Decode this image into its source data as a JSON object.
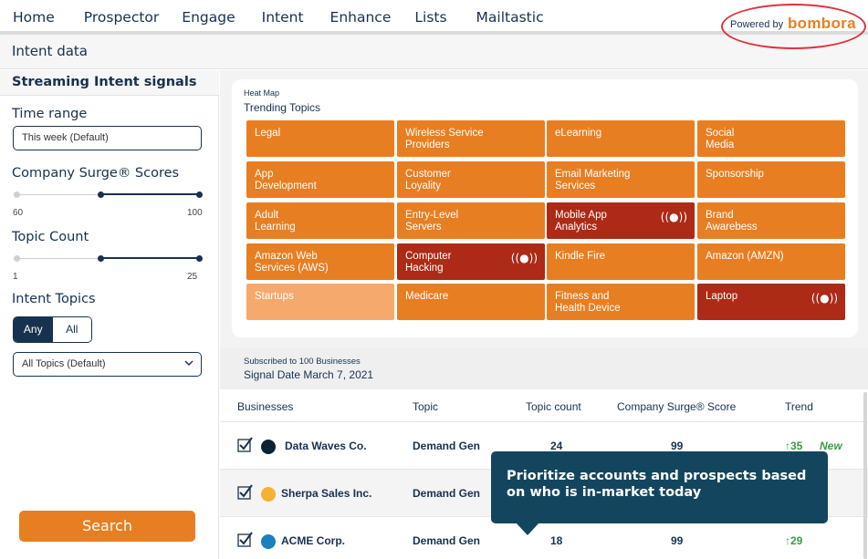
{
  "nav": {
    "items": [
      {
        "label": "Home"
      },
      {
        "label": "Prospector"
      },
      {
        "label": "Engage"
      },
      {
        "label": "Intent"
      },
      {
        "label": "Enhance"
      },
      {
        "label": "Lists"
      },
      {
        "label": "Mailtastic"
      }
    ],
    "active": "Intent",
    "accent": "#e87e22"
  },
  "header": {
    "title": "Intent data",
    "powered_by": "Powered by",
    "brand": "bombora",
    "brand_color": "#e87e22",
    "highlight_color": "#e0313b"
  },
  "sidebar": {
    "heading": "Streaming Intent signals",
    "time_range": {
      "label": "Time range",
      "value": "This week (Default)"
    },
    "surge": {
      "label": "Company Surge® Scores",
      "min_label": "60",
      "max_label": "100",
      "selected_from_fraction": 0.46,
      "selected_to_fraction": 1.0
    },
    "topic_count": {
      "label": "Topic Count",
      "min_label": "1",
      "max_label": "25",
      "selected_from_fraction": 0.46,
      "selected_to_fraction": 1.0
    },
    "intent_topics": {
      "label": "Intent Topics",
      "any": "Any",
      "all": "All",
      "selected": "Any",
      "select_value": "All Topics (Default)"
    },
    "search_button": "Search"
  },
  "heatmap": {
    "subtitle": "Heat Map",
    "title": "Trending Topics",
    "tiles": [
      {
        "label": "Legal",
        "level": "normal",
        "signal": false
      },
      {
        "label": "Wireless Service\nProviders",
        "level": "normal",
        "signal": false
      },
      {
        "label": "eLearning",
        "level": "normal",
        "signal": false
      },
      {
        "label": "Social\nMedia",
        "level": "normal",
        "signal": false
      },
      {
        "label": "App\nDevelopment",
        "level": "normal",
        "signal": false
      },
      {
        "label": "Customer\nLoyality",
        "level": "normal",
        "signal": false
      },
      {
        "label": "Email Marketing\nServices",
        "level": "normal",
        "signal": false
      },
      {
        "label": "Sponsorship",
        "level": "normal",
        "signal": false
      },
      {
        "label": "Adult\nLearning",
        "level": "normal",
        "signal": false
      },
      {
        "label": "Entry-Level\nServers",
        "level": "normal",
        "signal": false
      },
      {
        "label": "Mobile App\nAnalytics",
        "level": "hot",
        "signal": true
      },
      {
        "label": "Brand\nAwarebess",
        "level": "normal",
        "signal": false
      },
      {
        "label": "Amazon Web\nServices (AWS)",
        "level": "normal",
        "signal": false
      },
      {
        "label": "Computer\nHacking",
        "level": "hot",
        "signal": true
      },
      {
        "label": "Kindle Fire",
        "level": "normal",
        "signal": false
      },
      {
        "label": "Amazon (AMZN)",
        "level": "normal",
        "signal": false
      },
      {
        "label": "Startups",
        "level": "light",
        "signal": false
      },
      {
        "label": "Medicare",
        "level": "normal",
        "signal": false
      },
      {
        "label": "Fitness and\nHealth Device",
        "level": "normal",
        "signal": false
      },
      {
        "label": "Laptop",
        "level": "hot",
        "signal": true
      }
    ],
    "colors": {
      "normal": "#e87e22",
      "light": "#f6a96c",
      "hot": "#ad2a16"
    },
    "signal_icon": "((●))"
  },
  "table": {
    "subscribed": "Subscribed to 100 Businesses",
    "signal_date": "Signal Date March 7, 2021",
    "columns": [
      "Businesses",
      "Topic",
      "Topic count",
      "Company Surge® Score",
      "Trend"
    ],
    "rows": [
      {
        "business": "Data Waves Co.",
        "dot_color": "#0c2233",
        "topic": "Demand Gen",
        "topic_count": "24",
        "score": "99",
        "trend": "↑35",
        "badge": "New"
      },
      {
        "business": "Sherpa Sales Inc.",
        "dot_color": "#f2b233",
        "topic": "Demand Gen",
        "topic_count": "",
        "score": "",
        "trend": "",
        "badge": ""
      },
      {
        "business": "ACME Corp.",
        "dot_color": "#1b7fc0",
        "topic": "Demand Gen",
        "topic_count": "18",
        "score": "99",
        "trend": "↑29",
        "badge": ""
      }
    ]
  },
  "tooltip": {
    "text": "Prioritize accounts and prospects based on who is in-market today"
  }
}
